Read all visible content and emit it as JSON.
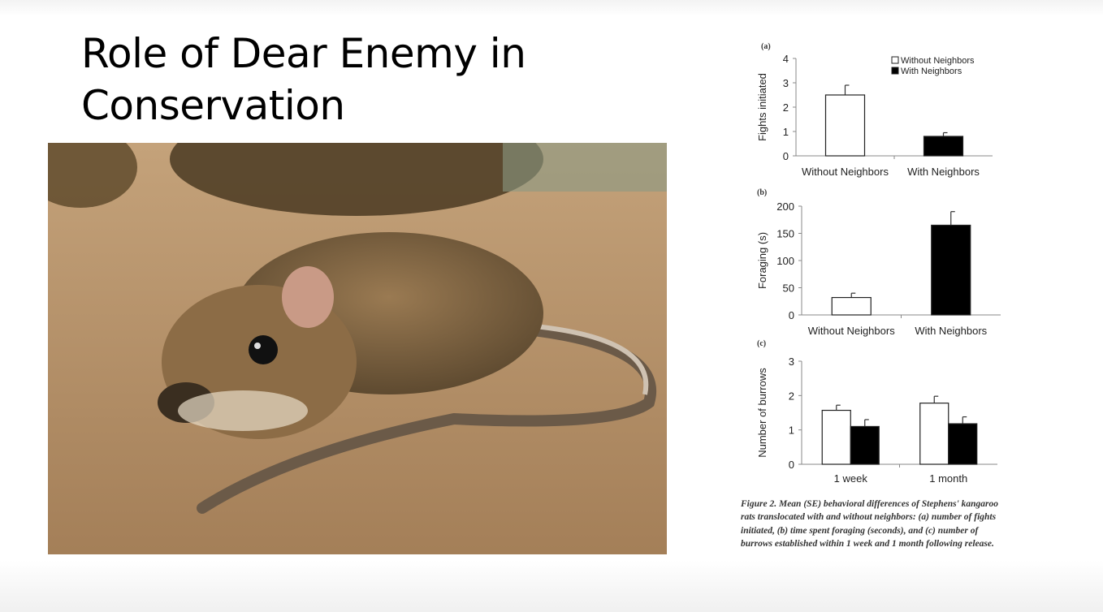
{
  "slide": {
    "title": "Role of Dear Enemy in Conservation",
    "caption": "Figure 2. Mean (SE) behavioral differences of Stephens' kangaroo rats translocated with and without neighbors: (a) number of fights initiated, (b) time spent foraging (seconds), and (c) number of burrows established within 1 week and 1 month following release."
  },
  "photo": {
    "subject": "kangaroo rat on sand"
  },
  "colors": {
    "without": "#ffffff",
    "with": "#000000"
  },
  "chart_data": [
    {
      "panel": "(a)",
      "type": "bar",
      "ylabel": "Fights initiated",
      "ylim": [
        0,
        4
      ],
      "yticks": [
        0,
        1,
        2,
        3,
        4
      ],
      "categories": [
        "Without Neighbors",
        "With Neighbors"
      ],
      "legend": {
        "position": "top-right",
        "entries": [
          "Without Neighbors",
          "With Neighbors"
        ]
      },
      "series": [
        {
          "values": [
            2.5,
            0.8
          ],
          "errors": [
            0.4,
            0.15
          ]
        }
      ],
      "bar_colors": [
        "#ffffff",
        "#000000"
      ]
    },
    {
      "panel": "(b)",
      "type": "bar",
      "ylabel": "Foraging (s)",
      "ylim": [
        0,
        200
      ],
      "yticks": [
        0,
        50,
        100,
        150,
        200
      ],
      "categories": [
        "Without Neighbors",
        "With Neighbors"
      ],
      "series": [
        {
          "values": [
            32,
            165
          ],
          "errors": [
            8,
            25
          ]
        }
      ],
      "bar_colors": [
        "#ffffff",
        "#000000"
      ]
    },
    {
      "panel": "(c)",
      "type": "bar",
      "ylabel": "Number of burrows",
      "ylim": [
        0,
        3
      ],
      "yticks": [
        0,
        1,
        2,
        3
      ],
      "categories": [
        "1 week",
        "1 month"
      ],
      "series": [
        {
          "values": [
            1.57,
            1.78
          ],
          "errors": [
            0.15,
            0.2
          ],
          "color": "#ffffff"
        },
        {
          "values": [
            1.1,
            1.18
          ],
          "errors": [
            0.2,
            0.2
          ],
          "color": "#000000"
        }
      ]
    }
  ]
}
